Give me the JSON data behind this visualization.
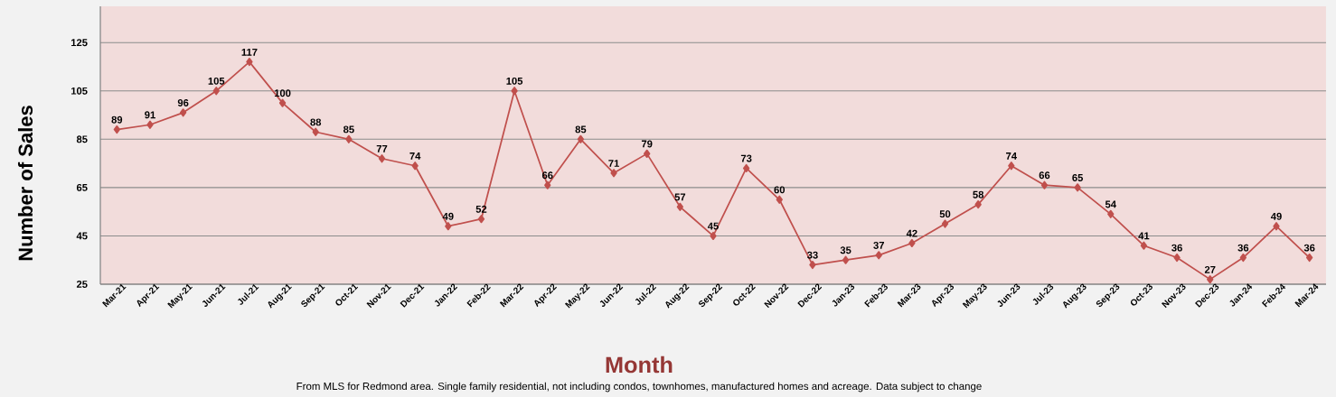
{
  "chart_data": {
    "type": "line",
    "xlabel": "Month",
    "ylabel": "Number of Sales",
    "annotations": [
      "From MLS for Redmond area. Single family residential, not including condos, townhomes, manufactured homes and acreage.  Data subject to change"
    ],
    "categories": [
      "Mar-21",
      "Apr-21",
      "May-21",
      "Jun-21",
      "Jul-21",
      "Aug-21",
      "Sep-21",
      "Oct-21",
      "Nov-21",
      "Dec-21",
      "Jan-22",
      "Feb-22",
      "Mar-22",
      "Apr-22",
      "May-22",
      "Jun-22",
      "Jul-22",
      "Aug-22",
      "Sep-22",
      "Oct-22",
      "Nov-22",
      "Dec-22",
      "Jan-23",
      "Feb-23",
      "Mar-23",
      "Apr-23",
      "May-23",
      "Jun-23",
      "Jul-23",
      "Aug-23",
      "Sep-23",
      "Oct-23",
      "Nov-23",
      "Dec-23",
      "Jan-24",
      "Feb-24",
      "Mar-24"
    ],
    "series": [
      {
        "color": "#c0504d",
        "values": [
          89,
          91,
          96,
          105,
          117,
          100,
          88,
          85,
          77,
          74,
          49,
          52,
          105,
          66,
          85,
          71,
          79,
          57,
          45,
          73,
          60,
          33,
          35,
          37,
          42,
          50,
          58,
          74,
          66,
          65,
          54,
          41,
          36,
          27,
          36,
          49,
          36
        ]
      }
    ],
    "ylim": [
      25,
      140
    ],
    "yticks": [
      25,
      45,
      65,
      85,
      105,
      125
    ],
    "grid": "y",
    "marker": "diamond",
    "line_style": "solid",
    "data_labels": true
  }
}
